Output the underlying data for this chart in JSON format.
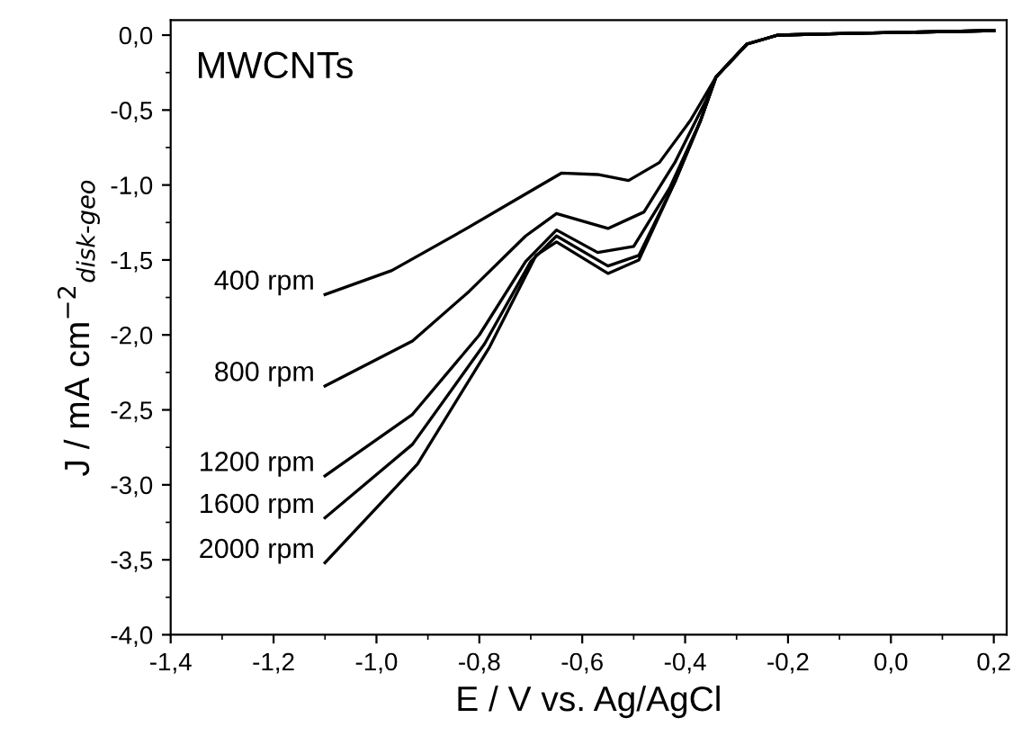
{
  "chart_data": {
    "type": "line",
    "title": "MWCNTs",
    "xlabel": "E / V vs. Ag/AgCl",
    "ylabel": "J / mA cm$^{−2}$$_{disk-geo}$",
    "xlim": [
      -1.4,
      0.225
    ],
    "ylim": [
      -4.0,
      0.1
    ],
    "xticks": [
      {
        "value": -1.4,
        "label": "-1,4"
      },
      {
        "value": -1.2,
        "label": "-1,2"
      },
      {
        "value": -1.0,
        "label": "-1,0"
      },
      {
        "value": -0.8,
        "label": "-0,8"
      },
      {
        "value": -0.6,
        "label": "-0,6"
      },
      {
        "value": -0.4,
        "label": "-0,4"
      },
      {
        "value": -0.2,
        "label": "-0,2"
      },
      {
        "value": 0.0,
        "label": "0,0"
      },
      {
        "value": 0.2,
        "label": "0,2"
      }
    ],
    "yticks": [
      {
        "value": -4.0,
        "label": "-4,0"
      },
      {
        "value": -3.5,
        "label": "-3,5"
      },
      {
        "value": -3.0,
        "label": "-3,0"
      },
      {
        "value": -2.5,
        "label": "-2,5"
      },
      {
        "value": -2.0,
        "label": "-2,0"
      },
      {
        "value": -1.5,
        "label": "-1,5"
      },
      {
        "value": -1.0,
        "label": "-1,0"
      },
      {
        "value": -0.5,
        "label": "-0,5"
      },
      {
        "value": 0.0,
        "label": "0,0"
      }
    ],
    "grid": false,
    "legend": false,
    "marker": "none",
    "line_style": "solid",
    "series": [
      {
        "name": "400 rpm",
        "color": "#000000",
        "x": [
          -1.1,
          -0.97,
          -0.83,
          -0.73,
          -0.64,
          -0.57,
          -0.51,
          -0.45,
          -0.39,
          -0.34,
          -0.28,
          -0.22,
          -0.1,
          0.2
        ],
        "values": [
          -1.73,
          -1.57,
          -1.3,
          -1.1,
          -0.92,
          -0.93,
          -0.97,
          -0.85,
          -0.57,
          -0.28,
          -0.06,
          0.0,
          0.01,
          0.03
        ]
      },
      {
        "name": "800 rpm",
        "color": "#000000",
        "x": [
          -1.1,
          -0.93,
          -0.82,
          -0.71,
          -0.65,
          -0.55,
          -0.48,
          -0.42,
          -0.36,
          -0.34,
          -0.28,
          -0.22,
          -0.1,
          0.2
        ],
        "values": [
          -2.34,
          -2.04,
          -1.71,
          -1.34,
          -1.19,
          -1.29,
          -1.18,
          -0.85,
          -0.44,
          -0.28,
          -0.06,
          0.0,
          0.01,
          0.03
        ]
      },
      {
        "name": "1200 rpm",
        "color": "#000000",
        "x": [
          -1.1,
          -0.93,
          -0.8,
          -0.71,
          -0.65,
          -0.57,
          -0.5,
          -0.43,
          -0.37,
          -0.34,
          -0.28,
          -0.22,
          -0.1,
          0.2
        ],
        "values": [
          -2.94,
          -2.53,
          -2.0,
          -1.51,
          -1.3,
          -1.45,
          -1.41,
          -1.02,
          -0.57,
          -0.28,
          -0.06,
          0.0,
          0.01,
          0.03
        ]
      },
      {
        "name": "1600 rpm",
        "color": "#000000",
        "x": [
          -1.1,
          -0.93,
          -0.79,
          -0.7,
          -0.65,
          -0.55,
          -0.49,
          -0.42,
          -0.37,
          -0.34,
          -0.28,
          -0.22,
          -0.1,
          0.2
        ],
        "values": [
          -3.22,
          -2.73,
          -2.06,
          -1.51,
          -1.34,
          -1.54,
          -1.47,
          -0.98,
          -0.57,
          -0.28,
          -0.06,
          0.0,
          0.01,
          0.03
        ]
      },
      {
        "name": "2000 rpm",
        "color": "#000000",
        "x": [
          -1.1,
          -0.92,
          -0.78,
          -0.69,
          -0.65,
          -0.55,
          -0.49,
          -0.42,
          -0.37,
          -0.34,
          -0.28,
          -0.22,
          -0.1,
          0.2
        ],
        "values": [
          -3.52,
          -2.86,
          -2.08,
          -1.47,
          -1.38,
          -1.59,
          -1.5,
          -0.98,
          -0.57,
          -0.28,
          -0.06,
          0.0,
          0.01,
          0.03
        ]
      }
    ]
  }
}
